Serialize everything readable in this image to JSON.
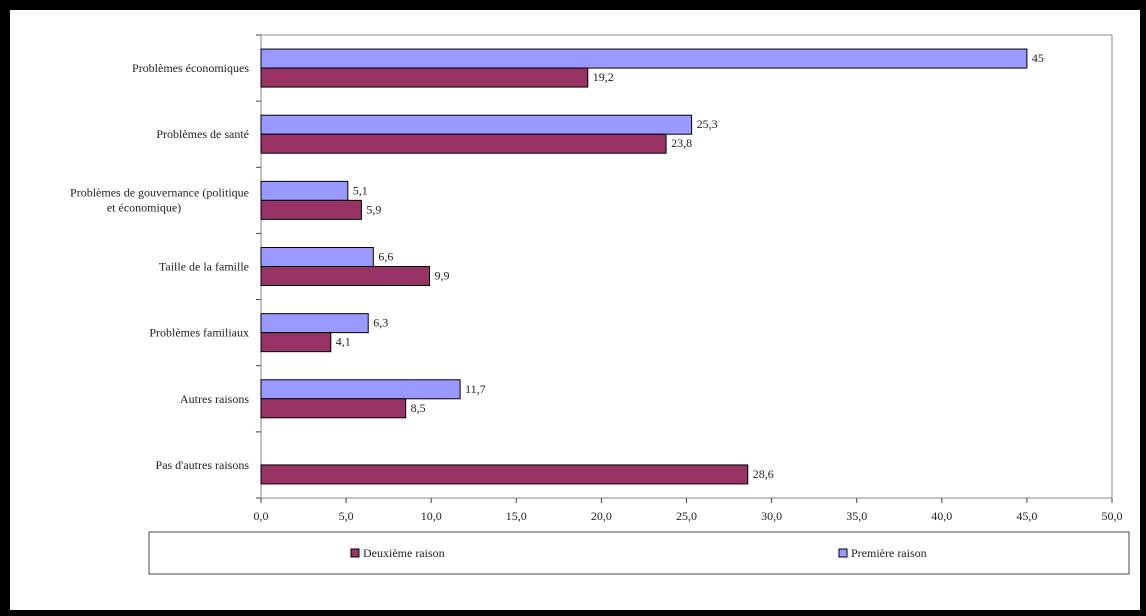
{
  "chart_data": {
    "type": "bar",
    "orientation": "horizontal",
    "categories": [
      "Problèmes économiques",
      "Problèmes de santé",
      "Problèmes de gouvernance (politique et économique)",
      "Taille de la famille",
      "Problèmes familiaux",
      "Autres raisons",
      "Pas d'autres raisons"
    ],
    "series": [
      {
        "name": "Première raison",
        "color": "#9999ff",
        "values": [
          45,
          25.3,
          5.1,
          6.6,
          6.3,
          11.7,
          null
        ],
        "labels": [
          "45",
          "25,3",
          "5,1",
          "6,6",
          "6,3",
          "11,7",
          ""
        ]
      },
      {
        "name": "Deuxième raison",
        "color": "#993366",
        "values": [
          19.2,
          23.8,
          5.9,
          9.9,
          4.1,
          8.5,
          28.6
        ],
        "labels": [
          "19,2",
          "23,8",
          "5,9",
          "9,9",
          "4,1",
          "8,5",
          "28,6"
        ]
      }
    ],
    "xlim": [
      0,
      50
    ],
    "xticks": [
      0,
      5,
      10,
      15,
      20,
      25,
      30,
      35,
      40,
      45,
      50
    ],
    "xtick_labels": [
      "0,0",
      "5,0",
      "10,0",
      "15,0",
      "20,0",
      "25,0",
      "30,0",
      "35,0",
      "40,0",
      "45,0",
      "50,0"
    ],
    "grid": false,
    "legend": {
      "placement": "bottom",
      "entries": [
        "Deuxième raison",
        "Première raison"
      ]
    },
    "title": "",
    "xlabel": "",
    "ylabel": ""
  }
}
